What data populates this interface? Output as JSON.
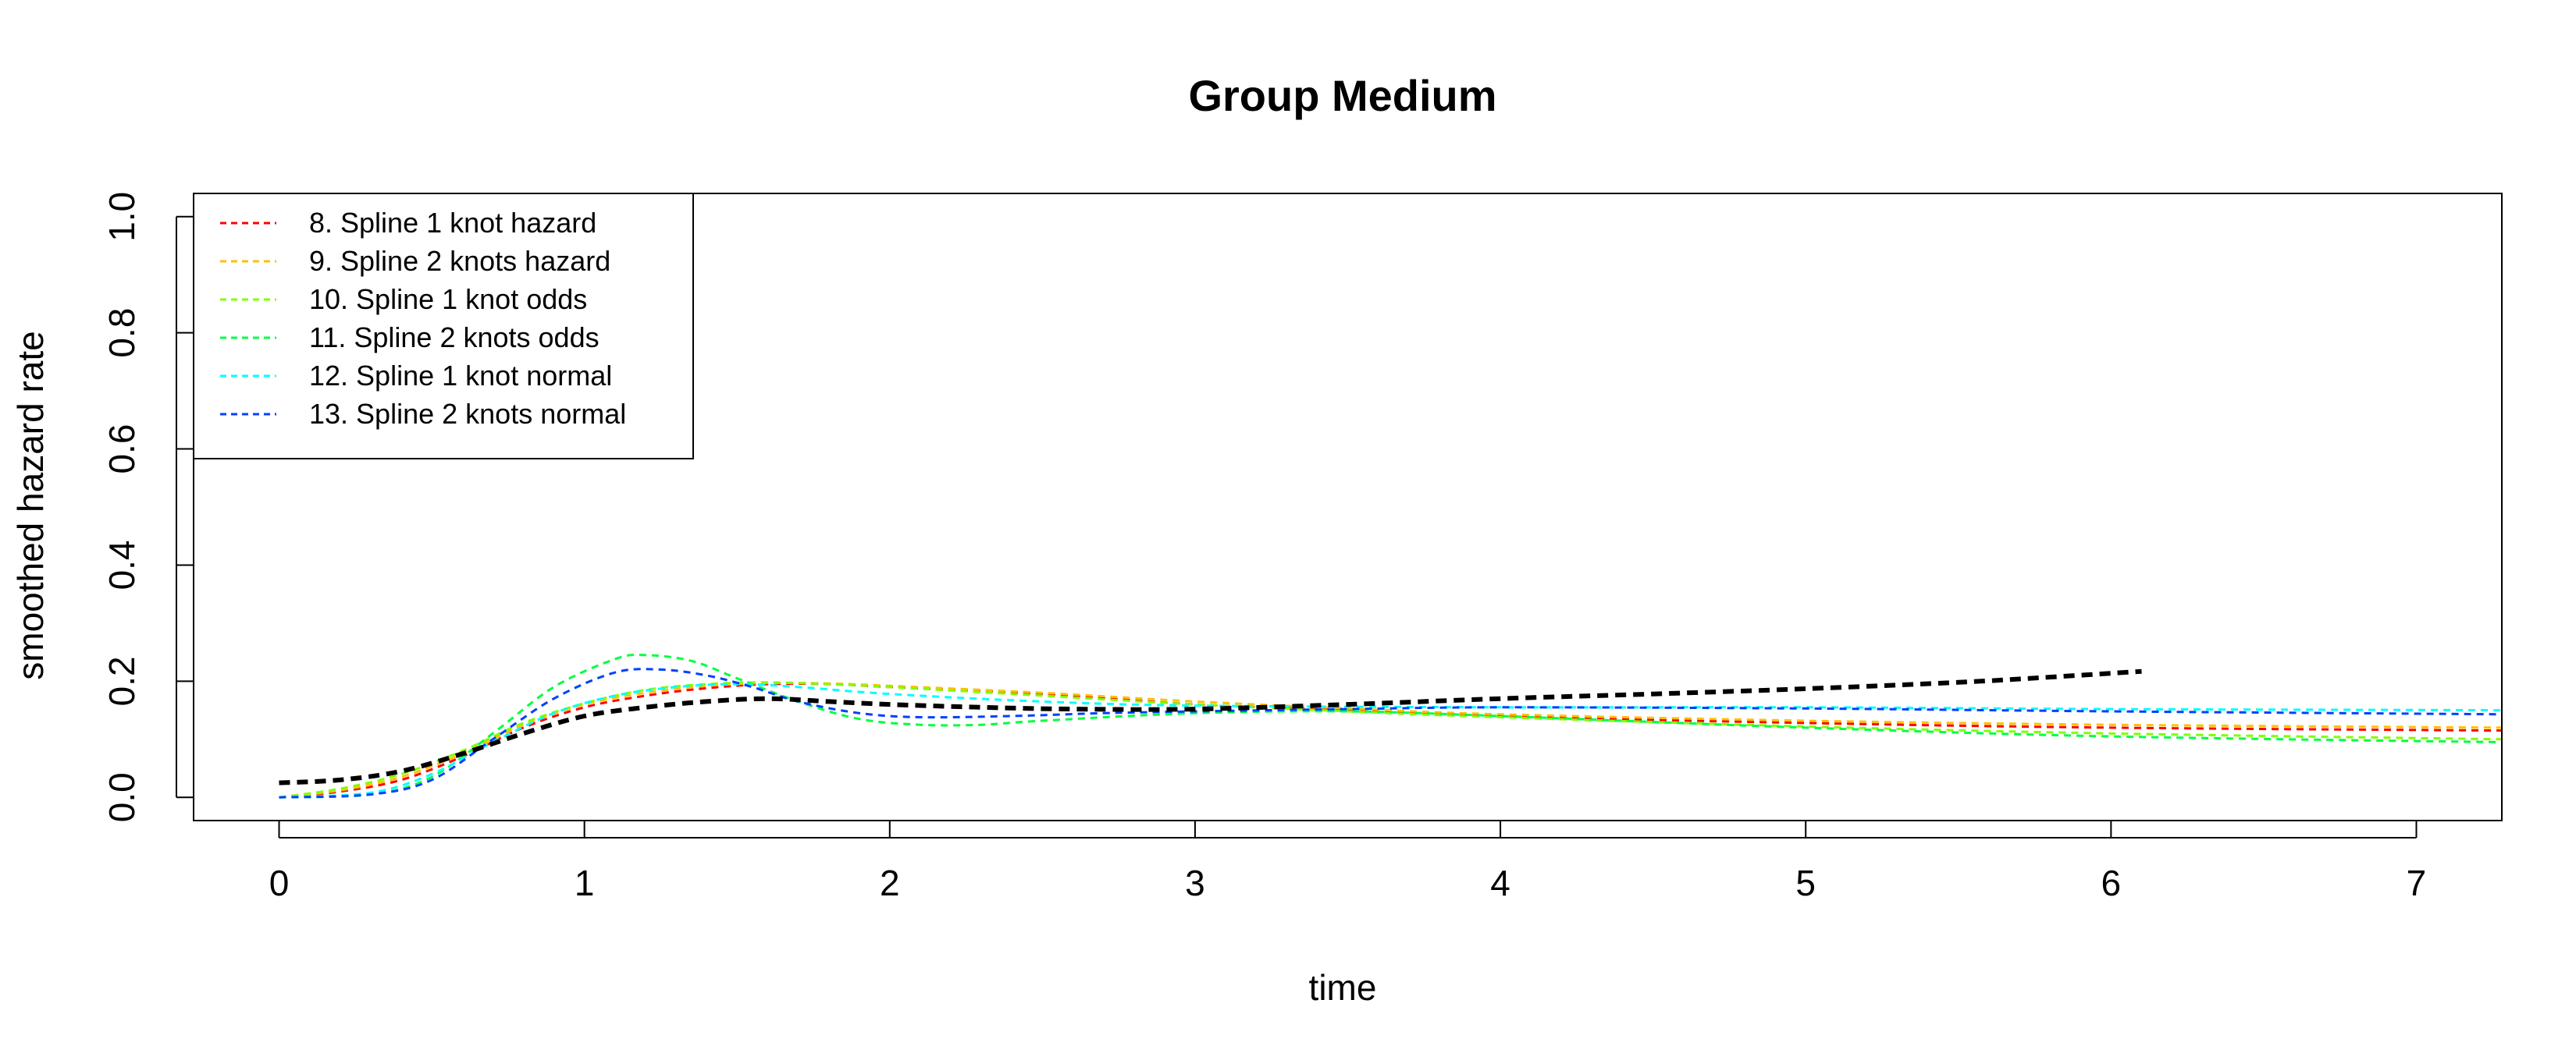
{
  "chart_data": {
    "type": "line",
    "title": "Group Medium",
    "xlabel": "time",
    "ylabel": "smoothed hazard rate",
    "xlim": [
      -0.28,
      7.28
    ],
    "ylim": [
      -0.04,
      1.04
    ],
    "xticks": [
      "0",
      "1",
      "2",
      "3",
      "4",
      "5",
      "6",
      "7"
    ],
    "yticks": [
      "0.0",
      "0.2",
      "0.4",
      "0.6",
      "0.8",
      "1.0"
    ],
    "legend_position": "top-left",
    "reference": {
      "color": "#000000",
      "points": [
        [
          0,
          0.025
        ],
        [
          0.2,
          0.03
        ],
        [
          0.4,
          0.045
        ],
        [
          0.6,
          0.075
        ],
        [
          0.8,
          0.11
        ],
        [
          1.0,
          0.14
        ],
        [
          1.2,
          0.155
        ],
        [
          1.4,
          0.165
        ],
        [
          1.6,
          0.17
        ],
        [
          1.8,
          0.165
        ],
        [
          2.0,
          0.16
        ],
        [
          2.3,
          0.155
        ],
        [
          2.6,
          0.152
        ],
        [
          3.0,
          0.152
        ],
        [
          3.5,
          0.16
        ],
        [
          4.0,
          0.17
        ],
        [
          4.5,
          0.178
        ],
        [
          5.0,
          0.187
        ],
        [
          5.5,
          0.198
        ],
        [
          5.8,
          0.207
        ],
        [
          6.1,
          0.217
        ]
      ]
    },
    "series": [
      {
        "name": "8. Spline 1 knot hazard",
        "color": "#FF0000",
        "points": [
          [
            0,
            0.0
          ],
          [
            0.2,
            0.01
          ],
          [
            0.4,
            0.03
          ],
          [
            0.6,
            0.07
          ],
          [
            0.8,
            0.12
          ],
          [
            1.0,
            0.155
          ],
          [
            1.2,
            0.175
          ],
          [
            1.4,
            0.188
          ],
          [
            1.6,
            0.195
          ],
          [
            1.8,
            0.195
          ],
          [
            2.0,
            0.19
          ],
          [
            2.5,
            0.178
          ],
          [
            3.0,
            0.16
          ],
          [
            3.5,
            0.15
          ],
          [
            4.0,
            0.14
          ],
          [
            5.0,
            0.128
          ],
          [
            6.0,
            0.12
          ],
          [
            7.28,
            0.115
          ]
        ]
      },
      {
        "name": "9. Spline 2 knots hazard",
        "color": "#FFBF00",
        "points": [
          [
            0,
            0.0
          ],
          [
            0.2,
            0.012
          ],
          [
            0.4,
            0.035
          ],
          [
            0.6,
            0.075
          ],
          [
            0.8,
            0.125
          ],
          [
            1.0,
            0.16
          ],
          [
            1.2,
            0.18
          ],
          [
            1.4,
            0.192
          ],
          [
            1.6,
            0.197
          ],
          [
            1.8,
            0.196
          ],
          [
            2.0,
            0.192
          ],
          [
            2.5,
            0.18
          ],
          [
            3.0,
            0.165
          ],
          [
            3.5,
            0.153
          ],
          [
            4.0,
            0.143
          ],
          [
            5.0,
            0.132
          ],
          [
            6.0,
            0.125
          ],
          [
            7.28,
            0.12
          ]
        ]
      },
      {
        "name": "10. Spline 1 knot odds",
        "color": "#80FF00",
        "points": [
          [
            0,
            0.0
          ],
          [
            0.2,
            0.015
          ],
          [
            0.4,
            0.04
          ],
          [
            0.6,
            0.08
          ],
          [
            0.8,
            0.128
          ],
          [
            1.0,
            0.162
          ],
          [
            1.2,
            0.185
          ],
          [
            1.4,
            0.195
          ],
          [
            1.6,
            0.198
          ],
          [
            1.8,
            0.195
          ],
          [
            2.0,
            0.19
          ],
          [
            2.5,
            0.175
          ],
          [
            3.0,
            0.16
          ],
          [
            3.5,
            0.148
          ],
          [
            4.0,
            0.138
          ],
          [
            5.0,
            0.122
          ],
          [
            6.0,
            0.11
          ],
          [
            7.28,
            0.1
          ]
        ]
      },
      {
        "name": "11. Spline 2 knots odds",
        "color": "#00FF40",
        "points": [
          [
            0,
            0.0
          ],
          [
            0.3,
            0.005
          ],
          [
            0.5,
            0.035
          ],
          [
            0.7,
            0.11
          ],
          [
            0.9,
            0.19
          ],
          [
            1.1,
            0.238
          ],
          [
            1.2,
            0.245
          ],
          [
            1.35,
            0.235
          ],
          [
            1.5,
            0.205
          ],
          [
            1.7,
            0.165
          ],
          [
            1.9,
            0.135
          ],
          [
            2.1,
            0.125
          ],
          [
            2.3,
            0.125
          ],
          [
            2.5,
            0.132
          ],
          [
            3.0,
            0.145
          ],
          [
            3.5,
            0.148
          ],
          [
            4.0,
            0.14
          ],
          [
            5.0,
            0.12
          ],
          [
            6.0,
            0.105
          ],
          [
            7.28,
            0.095
          ]
        ]
      },
      {
        "name": "12. Spline 1 knot normal",
        "color": "#00FFFF",
        "points": [
          [
            0,
            0.0
          ],
          [
            0.3,
            0.008
          ],
          [
            0.5,
            0.04
          ],
          [
            0.7,
            0.095
          ],
          [
            0.9,
            0.145
          ],
          [
            1.1,
            0.175
          ],
          [
            1.3,
            0.19
          ],
          [
            1.5,
            0.195
          ],
          [
            1.7,
            0.19
          ],
          [
            2.0,
            0.178
          ],
          [
            2.5,
            0.165
          ],
          [
            3.0,
            0.158
          ],
          [
            4.0,
            0.155
          ],
          [
            5.0,
            0.155
          ],
          [
            6.0,
            0.152
          ],
          [
            7.28,
            0.15
          ]
        ]
      },
      {
        "name": "13. Spline 2 knots normal",
        "color": "#0040FF",
        "points": [
          [
            0,
            0.0
          ],
          [
            0.3,
            0.005
          ],
          [
            0.5,
            0.03
          ],
          [
            0.7,
            0.1
          ],
          [
            0.9,
            0.17
          ],
          [
            1.1,
            0.215
          ],
          [
            1.25,
            0.22
          ],
          [
            1.4,
            0.21
          ],
          [
            1.55,
            0.19
          ],
          [
            1.7,
            0.165
          ],
          [
            1.9,
            0.145
          ],
          [
            2.1,
            0.138
          ],
          [
            2.4,
            0.14
          ],
          [
            2.7,
            0.145
          ],
          [
            3.0,
            0.148
          ],
          [
            3.5,
            0.152
          ],
          [
            4.0,
            0.155
          ],
          [
            5.0,
            0.153
          ],
          [
            6.0,
            0.148
          ],
          [
            7.28,
            0.143
          ]
        ]
      }
    ]
  }
}
